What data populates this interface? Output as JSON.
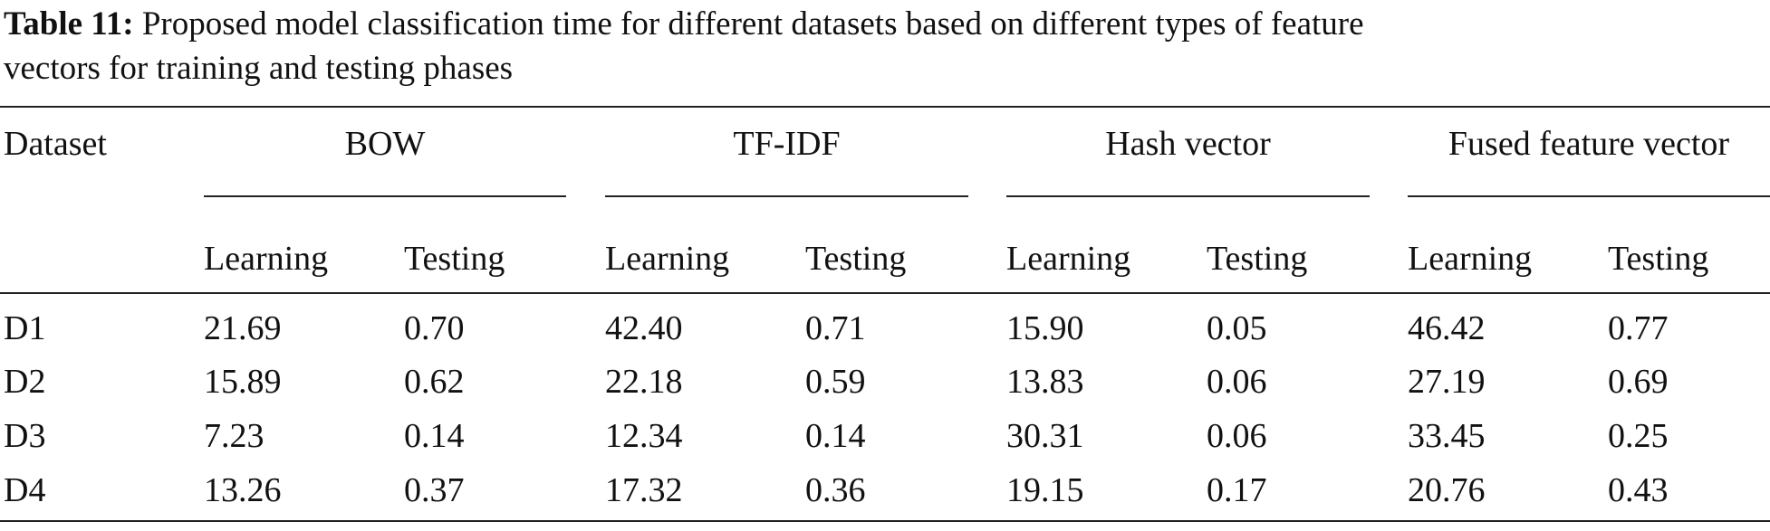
{
  "caption": {
    "label": "Table 11:",
    "line1": " Proposed model classification time for different datasets based on different types of feature",
    "line2": "vectors for training and testing phases"
  },
  "table": {
    "row_header": "Dataset",
    "groups": [
      "BOW",
      "TF-IDF",
      "Hash vector",
      "Fused feature vector"
    ],
    "subheaders": [
      "Learning",
      "Testing",
      "Learning",
      "Testing",
      "Learning",
      "Testing",
      "Learning",
      "Testing"
    ],
    "rows": [
      {
        "dataset": "D1",
        "values": [
          "21.69",
          "0.70",
          "42.40",
          "0.71",
          "15.90",
          "0.05",
          "46.42",
          "0.77"
        ]
      },
      {
        "dataset": "D2",
        "values": [
          "15.89",
          "0.62",
          "22.18",
          "0.59",
          "13.83",
          "0.06",
          "27.19",
          "0.69"
        ]
      },
      {
        "dataset": "D3",
        "values": [
          "7.23",
          "0.14",
          "12.34",
          "0.14",
          "30.31",
          "0.06",
          "33.45",
          "0.25"
        ]
      },
      {
        "dataset": "D4",
        "values": [
          "13.26",
          "0.37",
          "17.32",
          "0.36",
          "19.15",
          "0.17",
          "20.76",
          "0.43"
        ]
      }
    ]
  }
}
